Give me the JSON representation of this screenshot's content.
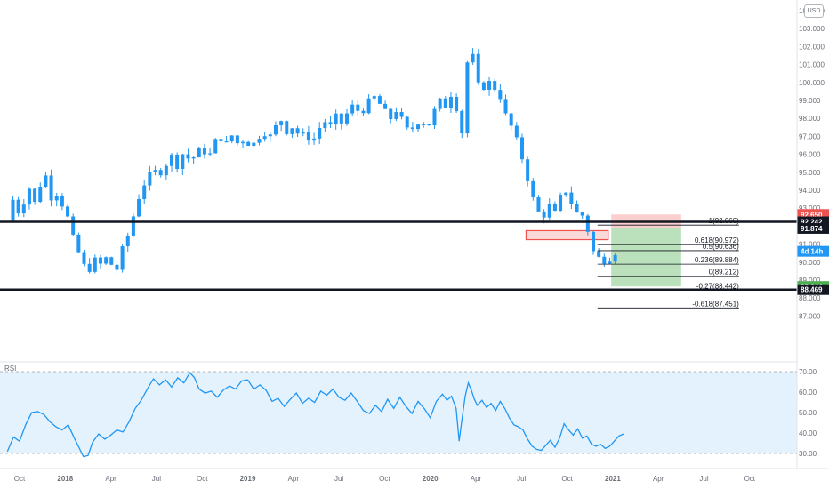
{
  "chart_data": {
    "type": "candlestick",
    "currency": "USD",
    "price_axis": {
      "min": 86.5,
      "max": 104.0,
      "ticks": [
        "104.000",
        "103.000",
        "102.000",
        "101.000",
        "100.000",
        "99.000",
        "98.000",
        "97.000",
        "96.000",
        "95.000",
        "94.000",
        "93.000",
        "92.000",
        "91.000",
        "90.000",
        "89.000",
        "88.000",
        "87.000"
      ]
    },
    "rsi_axis": {
      "min": 27,
      "max": 71,
      "ticks": [
        "70.00",
        "60.00",
        "50.00",
        "40.00",
        "30.00"
      ],
      "band": [
        30,
        70
      ],
      "label": "RSI"
    },
    "time_axis": {
      "labels": [
        {
          "t": 0,
          "text": "Oct",
          "bold": false
        },
        {
          "t": 3,
          "text": "2018",
          "bold": true
        },
        {
          "t": 6,
          "text": "Apr",
          "bold": false
        },
        {
          "t": 9,
          "text": "Jul",
          "bold": false
        },
        {
          "t": 12,
          "text": "Oct",
          "bold": false
        },
        {
          "t": 15,
          "text": "2019",
          "bold": true
        },
        {
          "t": 18,
          "text": "Apr",
          "bold": false
        },
        {
          "t": 21,
          "text": "Jul",
          "bold": false
        },
        {
          "t": 24,
          "text": "Oct",
          "bold": false
        },
        {
          "t": 27,
          "text": "2020",
          "bold": true
        },
        {
          "t": 30,
          "text": "Apr",
          "bold": false
        },
        {
          "t": 33,
          "text": "Jul",
          "bold": false
        },
        {
          "t": 36,
          "text": "Oct",
          "bold": false
        },
        {
          "t": 39,
          "text": "2021",
          "bold": true
        },
        {
          "t": 42,
          "text": "Apr",
          "bold": false
        },
        {
          "t": 45,
          "text": "Jul",
          "bold": false
        },
        {
          "t": 48,
          "text": "Oct",
          "bold": false
        }
      ]
    },
    "price_path": [
      [
        -0.8,
        92.3
      ],
      [
        -0.4,
        93.6
      ],
      [
        0.0,
        92.6
      ],
      [
        0.6,
        94.2
      ],
      [
        1.0,
        93.3
      ],
      [
        1.4,
        94.4
      ],
      [
        1.8,
        94.9
      ],
      [
        2.1,
        93.5
      ],
      [
        2.4,
        93.9
      ],
      [
        2.8,
        93.2
      ],
      [
        3.2,
        92.4
      ],
      [
        3.6,
        91.1
      ],
      [
        3.9,
        90.5
      ],
      [
        4.2,
        89.9
      ],
      [
        4.5,
        89.2
      ],
      [
        4.8,
        90.4
      ],
      [
        5.2,
        89.7
      ],
      [
        5.6,
        90.3
      ],
      [
        6.0,
        89.9
      ],
      [
        6.4,
        89.6
      ],
      [
        6.7,
        90.6
      ],
      [
        7.0,
        91.2
      ],
      [
        7.3,
        91.9
      ],
      [
        7.6,
        93.0
      ],
      [
        8.0,
        94.0
      ],
      [
        8.4,
        94.7
      ],
      [
        8.8,
        95.1
      ],
      [
        9.2,
        94.9
      ],
      [
        9.6,
        95.4
      ],
      [
        10.0,
        95.9
      ],
      [
        10.4,
        95.3
      ],
      [
        10.8,
        96.2
      ],
      [
        11.2,
        95.6
      ],
      [
        11.6,
        96.0
      ],
      [
        12.0,
        96.4
      ],
      [
        12.4,
        95.7
      ],
      [
        12.8,
        96.7
      ],
      [
        13.2,
        96.9
      ],
      [
        13.6,
        96.6
      ],
      [
        14.0,
        97.1
      ],
      [
        14.4,
        96.5
      ],
      [
        14.8,
        96.9
      ],
      [
        15.2,
        96.4
      ],
      [
        15.6,
        96.8
      ],
      [
        16.0,
        97.3
      ],
      [
        16.4,
        96.9
      ],
      [
        16.8,
        97.5
      ],
      [
        17.2,
        97.9
      ],
      [
        17.6,
        97.2
      ],
      [
        18.0,
        97.6
      ],
      [
        18.4,
        97.0
      ],
      [
        18.8,
        97.2
      ],
      [
        19.2,
        96.6
      ],
      [
        19.6,
        97.3
      ],
      [
        20.0,
        97.9
      ],
      [
        20.4,
        97.5
      ],
      [
        20.8,
        98.1
      ],
      [
        21.2,
        97.7
      ],
      [
        21.6,
        98.4
      ],
      [
        22.0,
        98.8
      ],
      [
        22.4,
        98.2
      ],
      [
        22.8,
        98.7
      ],
      [
        23.2,
        99.3
      ],
      [
        23.6,
        98.9
      ],
      [
        24.0,
        98.4
      ],
      [
        24.4,
        98.0
      ],
      [
        24.8,
        98.5
      ],
      [
        25.2,
        97.8
      ],
      [
        25.6,
        97.2
      ],
      [
        26.0,
        97.6
      ],
      [
        26.4,
        98.0
      ],
      [
        26.8,
        97.4
      ],
      [
        27.2,
        98.3
      ],
      [
        27.6,
        99.0
      ],
      [
        28.0,
        98.7
      ],
      [
        28.4,
        99.4
      ],
      [
        28.7,
        98.9
      ],
      [
        28.9,
        95.6
      ],
      [
        29.1,
        97.4
      ],
      [
        29.3,
        99.3
      ],
      [
        29.5,
        101.9
      ],
      [
        29.7,
        102.5
      ],
      [
        29.9,
        100.4
      ],
      [
        30.1,
        99.4
      ],
      [
        30.3,
        100.9
      ],
      [
        30.5,
        99.7
      ],
      [
        30.8,
        100.3
      ],
      [
        31.1,
        99.2
      ],
      [
        31.4,
        100.2
      ],
      [
        31.7,
        98.7
      ],
      [
        32.0,
        98.1
      ],
      [
        32.3,
        97.6
      ],
      [
        32.6,
        97.0
      ],
      [
        32.9,
        96.2
      ],
      [
        33.2,
        95.3
      ],
      [
        33.5,
        94.3
      ],
      [
        33.8,
        93.4
      ],
      [
        34.1,
        92.8
      ],
      [
        34.4,
        92.5
      ],
      [
        34.7,
        92.9
      ],
      [
        35.0,
        93.4
      ],
      [
        35.3,
        92.4
      ],
      [
        35.6,
        93.8
      ],
      [
        35.9,
        94.0
      ],
      [
        36.2,
        93.4
      ],
      [
        36.5,
        93.0
      ],
      [
        36.8,
        92.4
      ],
      [
        37.1,
        92.7
      ],
      [
        37.4,
        91.6
      ],
      [
        37.7,
        90.6
      ],
      [
        38.0,
        90.4
      ],
      [
        38.3,
        89.8
      ],
      [
        38.6,
        90.4
      ],
      [
        38.9,
        90.1
      ],
      [
        39.2,
        90.6
      ],
      [
        39.5,
        90.5
      ]
    ],
    "rsi_values": [
      [
        -0.8,
        31.0
      ],
      [
        -0.4,
        38.0
      ],
      [
        0.0,
        36.0
      ],
      [
        0.4,
        44.0
      ],
      [
        0.8,
        50.0
      ],
      [
        1.2,
        50.5
      ],
      [
        1.6,
        49.0
      ],
      [
        2.0,
        45.5
      ],
      [
        2.4,
        43.0
      ],
      [
        2.8,
        41.5
      ],
      [
        3.2,
        44.0
      ],
      [
        3.6,
        37.5
      ],
      [
        4.0,
        31.5
      ],
      [
        4.2,
        28.5
      ],
      [
        4.5,
        29.0
      ],
      [
        4.8,
        35.5
      ],
      [
        5.2,
        39.5
      ],
      [
        5.6,
        37.0
      ],
      [
        6.0,
        39.0
      ],
      [
        6.4,
        41.5
      ],
      [
        6.8,
        40.5
      ],
      [
        7.2,
        45.5
      ],
      [
        7.6,
        52.0
      ],
      [
        8.0,
        56.0
      ],
      [
        8.4,
        61.5
      ],
      [
        8.8,
        66.5
      ],
      [
        9.2,
        63.5
      ],
      [
        9.6,
        66.0
      ],
      [
        10.0,
        62.5
      ],
      [
        10.4,
        67.0
      ],
      [
        10.8,
        64.5
      ],
      [
        11.2,
        69.5
      ],
      [
        11.5,
        67.0
      ],
      [
        11.8,
        61.5
      ],
      [
        12.2,
        59.5
      ],
      [
        12.6,
        60.5
      ],
      [
        13.0,
        57.5
      ],
      [
        13.4,
        61.0
      ],
      [
        13.8,
        63.0
      ],
      [
        14.2,
        61.5
      ],
      [
        14.6,
        65.5
      ],
      [
        15.0,
        66.0
      ],
      [
        15.4,
        61.5
      ],
      [
        15.8,
        63.5
      ],
      [
        16.2,
        61.0
      ],
      [
        16.6,
        55.5
      ],
      [
        17.0,
        57.0
      ],
      [
        17.4,
        53.0
      ],
      [
        17.8,
        56.5
      ],
      [
        18.2,
        59.5
      ],
      [
        18.6,
        54.5
      ],
      [
        19.0,
        57.0
      ],
      [
        19.4,
        55.0
      ],
      [
        19.8,
        60.5
      ],
      [
        20.2,
        58.5
      ],
      [
        20.6,
        61.5
      ],
      [
        21.0,
        57.5
      ],
      [
        21.4,
        56.0
      ],
      [
        21.8,
        59.5
      ],
      [
        22.2,
        55.5
      ],
      [
        22.6,
        51.0
      ],
      [
        23.0,
        49.5
      ],
      [
        23.4,
        53.5
      ],
      [
        23.8,
        50.5
      ],
      [
        24.2,
        56.5
      ],
      [
        24.6,
        52.0
      ],
      [
        25.0,
        57.5
      ],
      [
        25.4,
        53.0
      ],
      [
        25.8,
        49.5
      ],
      [
        26.2,
        55.5
      ],
      [
        26.6,
        52.0
      ],
      [
        27.0,
        47.5
      ],
      [
        27.4,
        55.5
      ],
      [
        27.8,
        59.0
      ],
      [
        28.1,
        56.0
      ],
      [
        28.4,
        58.0
      ],
      [
        28.7,
        52.0
      ],
      [
        28.9,
        36.0
      ],
      [
        29.1,
        47.5
      ],
      [
        29.3,
        58.0
      ],
      [
        29.5,
        64.5
      ],
      [
        29.7,
        61.0
      ],
      [
        29.9,
        56.5
      ],
      [
        30.1,
        53.5
      ],
      [
        30.4,
        56.0
      ],
      [
        30.7,
        52.5
      ],
      [
        31.0,
        54.5
      ],
      [
        31.3,
        51.0
      ],
      [
        31.6,
        55.5
      ],
      [
        31.9,
        52.0
      ],
      [
        32.2,
        47.5
      ],
      [
        32.5,
        44.0
      ],
      [
        32.8,
        43.0
      ],
      [
        33.1,
        41.5
      ],
      [
        33.4,
        37.0
      ],
      [
        33.7,
        33.5
      ],
      [
        34.0,
        32.0
      ],
      [
        34.3,
        31.5
      ],
      [
        34.6,
        34.0
      ],
      [
        34.9,
        36.5
      ],
      [
        35.2,
        33.0
      ],
      [
        35.5,
        37.5
      ],
      [
        35.8,
        44.5
      ],
      [
        36.1,
        41.5
      ],
      [
        36.4,
        39.0
      ],
      [
        36.7,
        42.0
      ],
      [
        37.0,
        37.5
      ],
      [
        37.3,
        38.5
      ],
      [
        37.6,
        34.5
      ],
      [
        37.9,
        33.5
      ],
      [
        38.2,
        34.5
      ],
      [
        38.5,
        32.5
      ],
      [
        38.8,
        33.5
      ],
      [
        39.1,
        36.0
      ],
      [
        39.4,
        38.5
      ],
      [
        39.7,
        39.5
      ]
    ],
    "horizontal_levels": [
      92.242,
      88.469
    ],
    "fib_levels": [
      {
        "value": 92.06,
        "label": "1(92.060)"
      },
      {
        "value": 90.972,
        "label": "0.618(90.972)"
      },
      {
        "value": 90.636,
        "label": "0.5(90.636)"
      },
      {
        "value": 89.884,
        "label": "0.236(89.884)"
      },
      {
        "value": 89.212,
        "label": "0(89.212)"
      },
      {
        "value": 88.442,
        "label": "-0.27(88.442)"
      },
      {
        "value": 87.451,
        "label": "-0.618(87.451)"
      }
    ],
    "resistance_zone": {
      "t0": 33.3,
      "t1": 38.7,
      "low": 91.25,
      "high": 91.75
    },
    "position": {
      "t0": 38.9,
      "t1": 43.5,
      "entry": 91.874,
      "stop": 92.65,
      "target": 88.644
    },
    "price_labels": [
      {
        "value": 92.65,
        "text": "92.650",
        "color": "#ef5350"
      },
      {
        "value": 92.242,
        "text": "92.242",
        "color": "#131722"
      },
      {
        "value": 91.874,
        "text": "91.874",
        "color": "#131722"
      },
      {
        "value": 90.6,
        "text": "4d 14h",
        "color": "#2196f3"
      },
      {
        "value": 88.644,
        "text": "88.644",
        "color": "#4caf50"
      },
      {
        "value": 88.469,
        "text": "88.469",
        "color": "#131722"
      }
    ],
    "colors": {
      "candle": "#2196f3",
      "rsi": "#2196f3",
      "rsi_band": "#e3f2fd",
      "level": "#131722"
    }
  }
}
